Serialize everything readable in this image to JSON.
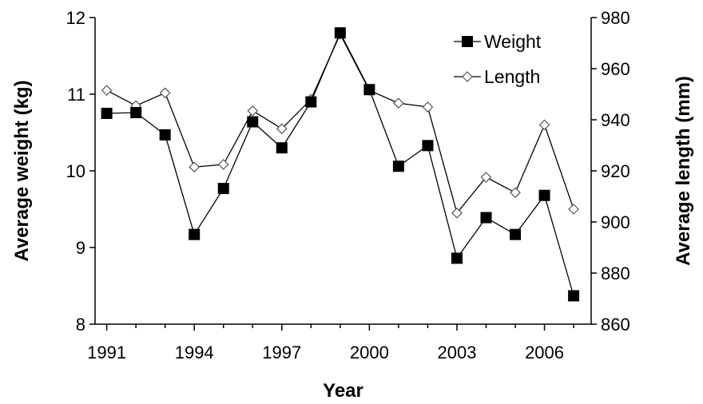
{
  "chart_data": {
    "type": "line",
    "title": "",
    "xlabel": "Year",
    "ylabel_left": "Average weight (kg)",
    "ylabel_right": "Average length (mm)",
    "x": [
      1991,
      1992,
      1993,
      1994,
      1995,
      1996,
      1997,
      1998,
      1999,
      2000,
      2001,
      2002,
      2003,
      2004,
      2005,
      2006,
      2007
    ],
    "x_ticks": [
      1991,
      1994,
      1997,
      2000,
      2003,
      2006
    ],
    "xlim": [
      1990.6,
      2007.6
    ],
    "ylim_left": [
      8,
      12
    ],
    "ylim_right": [
      860,
      980
    ],
    "y_ticks_left": [
      8,
      9,
      10,
      11,
      12
    ],
    "y_ticks_right": [
      860,
      880,
      900,
      920,
      940,
      960,
      980
    ],
    "series": [
      {
        "name": "Weight",
        "axis": "left",
        "marker": "filled-square",
        "values": [
          10.75,
          10.76,
          10.47,
          9.17,
          9.77,
          10.64,
          10.3,
          10.9,
          11.8,
          11.06,
          10.06,
          10.33,
          8.86,
          9.39,
          9.17,
          9.68,
          8.37
        ]
      },
      {
        "name": "Length",
        "axis": "right",
        "marker": "open-diamond",
        "values": [
          951.5,
          945.5,
          950.5,
          921.5,
          922.5,
          943.5,
          936.5,
          948,
          973.5,
          951.5,
          946.5,
          945,
          903.5,
          917.5,
          911.5,
          938,
          905
        ]
      }
    ],
    "grid": false,
    "legend_position": "top-right",
    "colors": {
      "line": "#000000",
      "weight_marker": "#000000",
      "length_marker_fill": "#ffffff"
    }
  }
}
